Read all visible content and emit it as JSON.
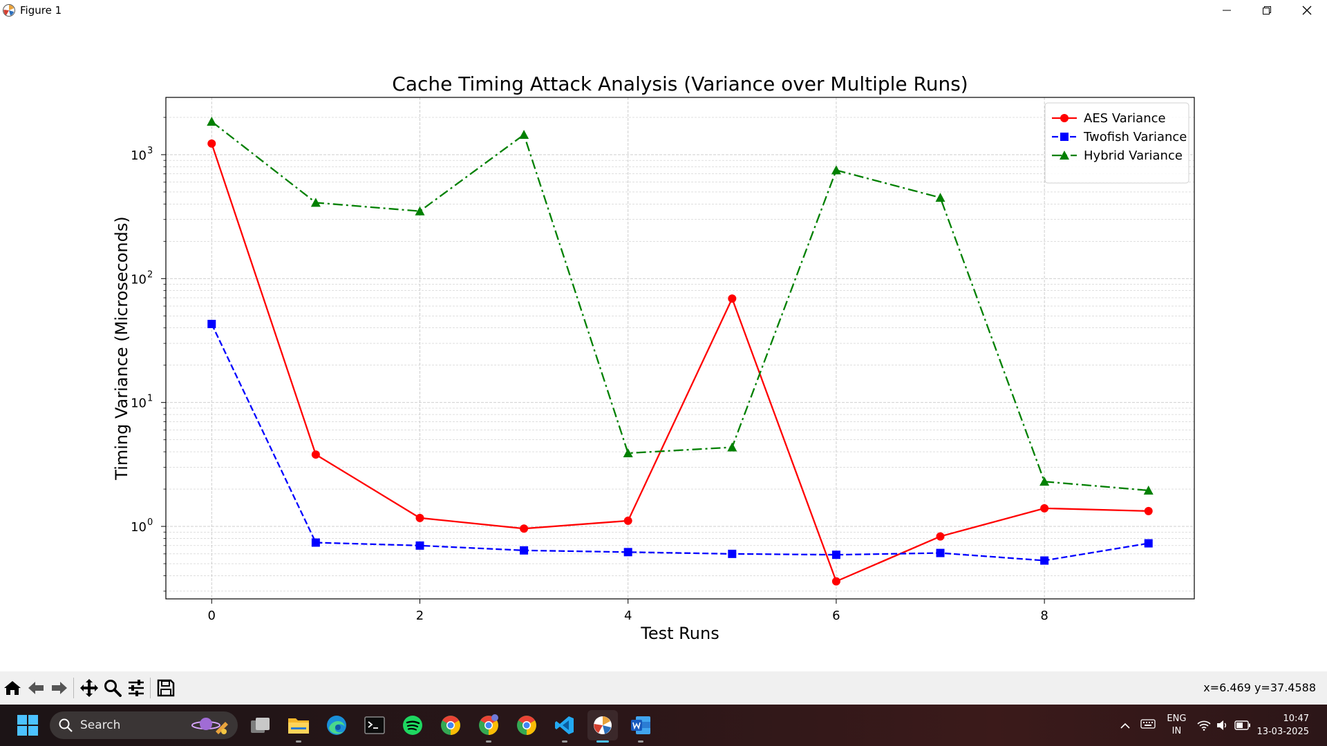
{
  "window": {
    "title": "Figure 1"
  },
  "toolbar": {
    "buttons": [
      "home-icon",
      "back-arrow-icon",
      "forward-arrow-icon",
      "pan-icon",
      "zoom-icon",
      "configure-subplots-icon",
      "save-icon"
    ],
    "coords": "x=6.469 y=37.4588"
  },
  "chart_data": {
    "type": "line",
    "title": "Cache Timing Attack Analysis (Variance over Multiple Runs)",
    "xlabel": "Test Runs",
    "ylabel": "Timing Variance (Microseconds)",
    "yscale": "log",
    "xlim": [
      -0.44,
      9.44
    ],
    "ylim": [
      0.26,
      2900
    ],
    "xticks": [
      0,
      2,
      4,
      6,
      8
    ],
    "yticks": [
      1,
      10,
      100,
      1000
    ],
    "ytick_labels": [
      "10",
      "10",
      "10",
      "10"
    ],
    "ytick_exponents": [
      "0",
      "1",
      "2",
      "3"
    ],
    "grid": true,
    "legend_position": "top-right",
    "x": [
      0,
      1,
      2,
      3,
      4,
      5,
      6,
      7,
      8,
      9
    ],
    "series": [
      {
        "name": "AES Variance",
        "color": "#ff0000",
        "marker": "circle",
        "linestyle": "solid",
        "values": [
          1230,
          3.8,
          1.17,
          0.96,
          1.11,
          69,
          0.36,
          0.83,
          1.4,
          1.33
        ]
      },
      {
        "name": "Twofish Variance",
        "color": "#0000ff",
        "marker": "square",
        "linestyle": "dashed",
        "values": [
          43,
          0.74,
          0.7,
          0.64,
          0.62,
          0.6,
          0.59,
          0.61,
          0.53,
          0.73
        ]
      },
      {
        "name": "Hybrid Variance",
        "color": "#008000",
        "marker": "triangle",
        "linestyle": "dashdot",
        "values": [
          1850,
          410,
          350,
          1450,
          3.9,
          4.35,
          750,
          450,
          2.3,
          1.95
        ]
      }
    ]
  },
  "taskbar": {
    "search_label": "Search",
    "apps": [
      "task-view-icon",
      "file-explorer-icon",
      "edge-icon",
      "terminal-icon",
      "spotify-icon",
      "chrome-v-icon",
      "chrome-c-icon",
      "chrome-icon",
      "vscode-icon",
      "python-figure-icon",
      "word-icon"
    ],
    "lang_top": "ENG",
    "lang_bottom": "IN",
    "time": "10:47",
    "date": "13-03-2025"
  }
}
